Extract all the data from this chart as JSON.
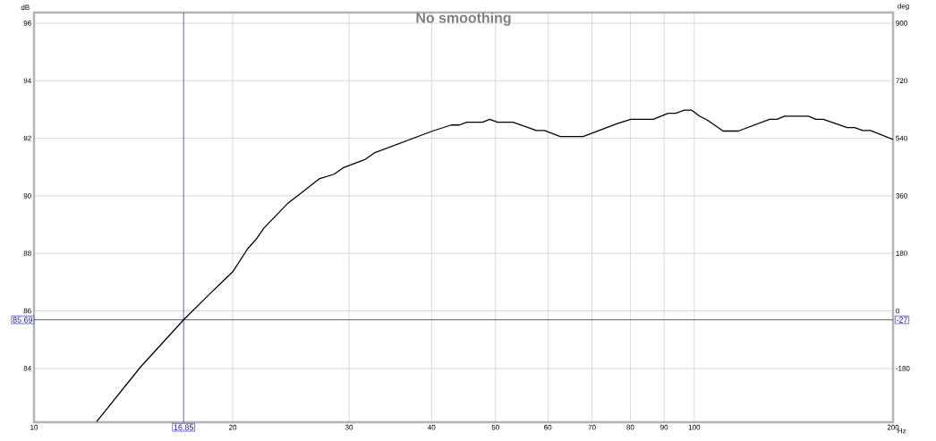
{
  "chart_data": {
    "type": "line",
    "title": "No smoothing",
    "xlabel": "Hz",
    "ylabel": "dB",
    "y2label": "deg",
    "x": [
      12.44,
      14.5,
      16.85,
      18.5,
      20,
      21.08,
      21.68,
      22.3,
      24.26,
      25.67,
      27.03,
      28.48,
      29.37,
      31.76,
      32.77,
      40.13,
      42.84,
      44.06,
      45.23,
      47.78,
      48.99,
      50.35,
      53.14,
      57.65,
      59.29,
      62.65,
      67.87,
      76.48,
      80.14,
      86.66,
      91.3,
      93.7,
      96.66,
      99.01,
      101.8,
      104.5,
      110.6,
      116.6,
      130.0,
      133.4,
      137.0,
      148.9,
      152.8,
      156.8,
      170.4,
      174.9,
      179.9,
      184.8,
      200
    ],
    "values": [
      82.15,
      84.05,
      85.69,
      86.61,
      87.36,
      88.17,
      88.48,
      88.88,
      89.75,
      90.18,
      90.59,
      90.75,
      90.97,
      91.27,
      91.49,
      92.25,
      92.46,
      92.46,
      92.56,
      92.56,
      92.66,
      92.56,
      92.56,
      92.27,
      92.27,
      92.06,
      92.06,
      92.51,
      92.66,
      92.66,
      92.87,
      92.87,
      92.98,
      92.98,
      92.77,
      92.64,
      92.25,
      92.25,
      92.66,
      92.66,
      92.77,
      92.77,
      92.66,
      92.66,
      92.37,
      92.37,
      92.27,
      92.27,
      91.96
    ],
    "color": "#000000",
    "log": "x",
    "grid": true,
    "xlim": [
      10,
      200
    ],
    "xticks": [
      10,
      20,
      30,
      40,
      50,
      60,
      70,
      80,
      90,
      100,
      200
    ],
    "ylim": [
      82.13,
      96.37
    ],
    "yticks": [
      84,
      86,
      88,
      90,
      92,
      94,
      96
    ],
    "y2lim": [
      -348.3,
      933.3
    ],
    "y2ticks": [
      -180,
      0,
      180,
      360,
      540,
      720,
      900
    ],
    "ref_lines": [
      {
        "axis": "x",
        "value": 16.85,
        "label": "16.85",
        "color": "#1c1c9c"
      },
      {
        "axis": "y",
        "value": 85.69,
        "label": "85.69",
        "color": "#1c1c9c"
      }
    ],
    "annotations": [
      "-27"
    ]
  }
}
